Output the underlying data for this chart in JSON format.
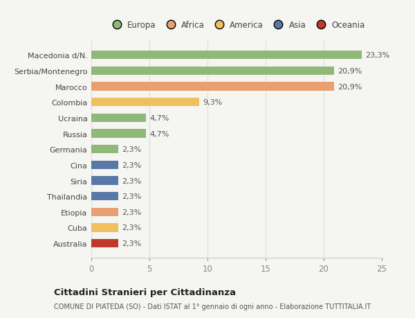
{
  "categories": [
    "Australia",
    "Cuba",
    "Etiopia",
    "Thailandia",
    "Siria",
    "Cina",
    "Germania",
    "Russia",
    "Ucraina",
    "Colombia",
    "Marocco",
    "Serbia/Montenegro",
    "Macedonia d/N."
  ],
  "values": [
    2.3,
    2.3,
    2.3,
    2.3,
    2.3,
    2.3,
    2.3,
    4.7,
    4.7,
    9.3,
    20.9,
    20.9,
    23.3
  ],
  "colors": [
    "#c0392b",
    "#f0c060",
    "#e8a070",
    "#5878a8",
    "#5878a8",
    "#5878a8",
    "#90b878",
    "#90b878",
    "#90b878",
    "#f0c060",
    "#e8a070",
    "#90b878",
    "#90b878"
  ],
  "labels": [
    "2,3%",
    "2,3%",
    "2,3%",
    "2,3%",
    "2,3%",
    "2,3%",
    "2,3%",
    "4,7%",
    "4,7%",
    "9,3%",
    "20,9%",
    "20,9%",
    "23,3%"
  ],
  "legend": [
    {
      "label": "Europa",
      "color": "#90b878"
    },
    {
      "label": "Africa",
      "color": "#e8a070"
    },
    {
      "label": "America",
      "color": "#f0c060"
    },
    {
      "label": "Asia",
      "color": "#5878a8"
    },
    {
      "label": "Oceania",
      "color": "#c0392b"
    }
  ],
  "title": "Cittadini Stranieri per Cittadinanza",
  "subtitle": "COMUNE DI PIATEDA (SO) - Dati ISTAT al 1° gennaio di ogni anno - Elaborazione TUTTITALIA.IT",
  "xlabel_ticks": [
    0,
    5,
    10,
    15,
    20,
    25
  ],
  "xlim": [
    0,
    25
  ],
  "background_color": "#f5f5f2"
}
